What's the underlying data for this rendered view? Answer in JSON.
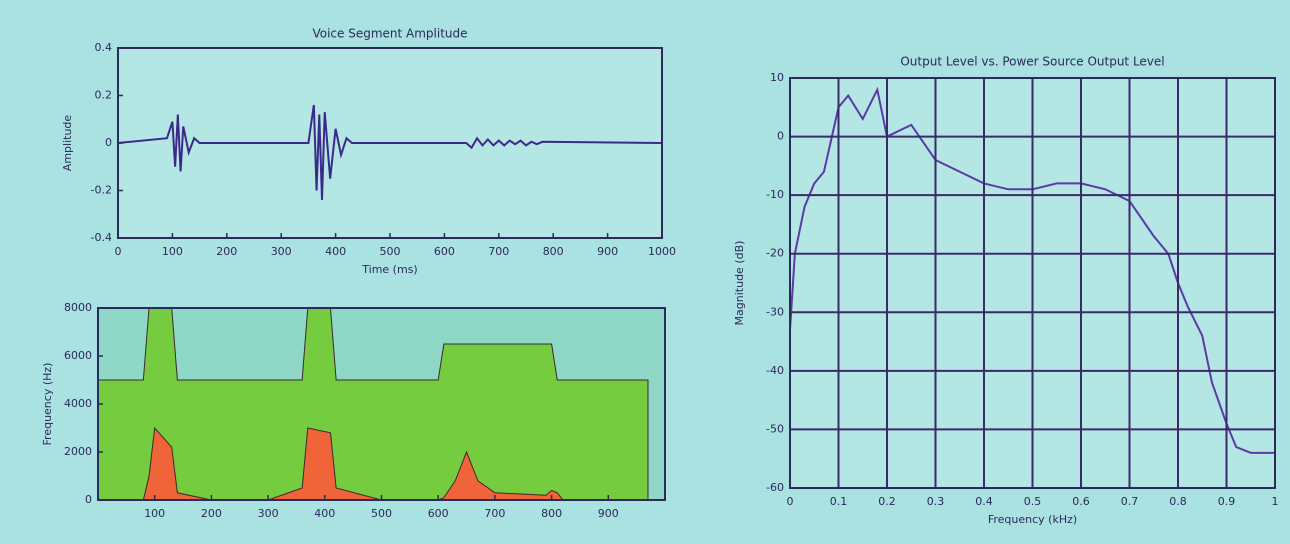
{
  "chart_data": [
    {
      "type": "line",
      "title": "Voice Segment Amplitude",
      "x_label": "Time (ms)",
      "y_label": "Amplitude",
      "xlim": [
        0,
        1000
      ],
      "xticks": [
        0,
        100,
        200,
        300,
        400,
        500,
        600,
        700,
        800,
        900,
        1000
      ],
      "ylim": [
        -0.4,
        0.4
      ],
      "yticks": [
        -0.4,
        -0.2,
        0,
        0.2,
        0.4
      ],
      "grid": false,
      "background": "#b4e6e4",
      "x": [
        0,
        90,
        100,
        105,
        110,
        115,
        120,
        130,
        140,
        150,
        350,
        360,
        365,
        370,
        375,
        380,
        390,
        400,
        410,
        420,
        430,
        640,
        650,
        660,
        670,
        680,
        690,
        700,
        710,
        720,
        730,
        740,
        750,
        760,
        770,
        780,
        1000
      ],
      "series": [
        {
          "color": "#3b2a8c",
          "values": [
            0,
            0.02,
            0.09,
            -0.1,
            0.12,
            -0.12,
            0.07,
            -0.04,
            0.02,
            0,
            0,
            0.16,
            -0.2,
            0.12,
            -0.24,
            0.13,
            -0.15,
            0.06,
            -0.05,
            0.02,
            0,
            0,
            -0.02,
            0.02,
            -0.01,
            0.015,
            -0.01,
            0.01,
            -0.01,
            0.01,
            -0.005,
            0.01,
            -0.01,
            0.005,
            -0.005,
            0.005,
            0
          ]
        }
      ]
    },
    {
      "type": "area",
      "y_label": "Frequency (Hz)",
      "xlim": [
        0,
        1000
      ],
      "xticks": [
        100,
        200,
        300,
        400,
        500,
        600,
        700,
        800,
        900
      ],
      "ylim": [
        0,
        8000
      ],
      "yticks": [
        0,
        2000,
        4000,
        6000,
        8000
      ],
      "grid": false,
      "background": "#8fd8c8",
      "x": [
        0,
        80,
        90,
        100,
        130,
        140,
        200,
        300,
        360,
        370,
        410,
        420,
        500,
        600,
        610,
        630,
        650,
        670,
        700,
        790,
        800,
        810,
        820,
        840,
        970
      ],
      "series": [
        {
          "color": "#74cc3e",
          "values": [
            5000,
            5000,
            8000,
            8000,
            8000,
            5000,
            5000,
            5000,
            5000,
            8000,
            8000,
            5000,
            5000,
            5000,
            6500,
            6500,
            6500,
            6500,
            6500,
            6500,
            6500,
            5000,
            5000,
            5000,
            5000
          ]
        },
        {
          "color": "#f0643a",
          "values": [
            0,
            0,
            1000,
            3000,
            2200,
            300,
            0,
            0,
            500,
            3000,
            2800,
            500,
            0,
            0,
            100,
            800,
            2000,
            800,
            300,
            200,
            400,
            300,
            0,
            0,
            0
          ]
        }
      ]
    },
    {
      "type": "line",
      "title": "Output Level vs. Power Source Output Level",
      "x_label": "Frequency (kHz)",
      "y_label": "Magnitude (dB)",
      "xlim": [
        0,
        1
      ],
      "xticks": [
        0,
        0.1,
        0.2,
        0.3,
        0.4,
        0.5,
        0.6,
        0.7,
        0.8,
        0.9,
        1
      ],
      "ylim": [
        -60,
        10
      ],
      "yticks": [
        -60,
        -50,
        -40,
        -30,
        -20,
        -10,
        0,
        10
      ],
      "grid": true,
      "background": "#b4e6e4",
      "x": [
        0,
        0.01,
        0.03,
        0.05,
        0.07,
        0.1,
        0.12,
        0.15,
        0.18,
        0.2,
        0.25,
        0.3,
        0.35,
        0.4,
        0.45,
        0.5,
        0.55,
        0.6,
        0.65,
        0.7,
        0.75,
        0.78,
        0.8,
        0.82,
        0.85,
        0.87,
        0.9,
        0.92,
        0.95,
        1
      ],
      "series": [
        {
          "color": "#5a3aa8",
          "values": [
            -33,
            -20,
            -12,
            -8,
            -6,
            5,
            7,
            3,
            8,
            0,
            2,
            -4,
            -6,
            -8,
            -9,
            -9,
            -8,
            -8,
            -9,
            -11,
            -17,
            -20,
            -25,
            -29,
            -34,
            -42,
            -49,
            -53,
            -54,
            -54
          ]
        }
      ]
    }
  ]
}
